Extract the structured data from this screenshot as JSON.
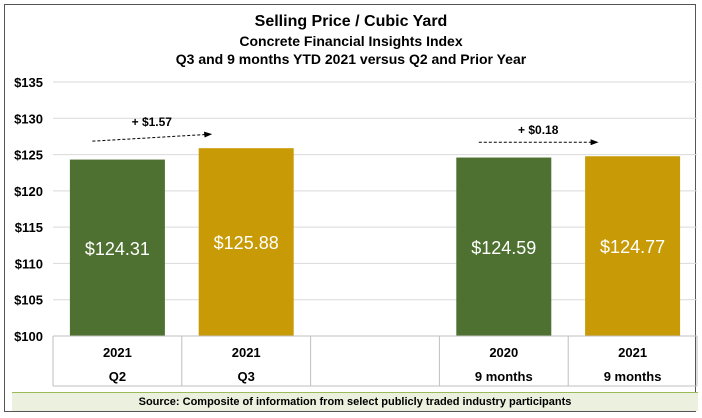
{
  "chart_data": {
    "type": "bar",
    "title": "Selling Price / Cubic Yard",
    "subtitle_1": "Concrete Financial Insights Index",
    "subtitle_2": "Q3 and 9 months YTD 2021 versus Q2 and Prior Year",
    "ylim": [
      100,
      135
    ],
    "yticks": [
      100,
      105,
      110,
      115,
      120,
      125,
      130,
      135
    ],
    "ytick_labels": [
      "$100",
      "$105",
      "$110",
      "$115",
      "$120",
      "$125",
      "$130",
      "$135"
    ],
    "grid": true,
    "bars": [
      {
        "year": "2021",
        "period": "Q2",
        "value": 124.31,
        "label": "$124.31",
        "color": "#4e7030"
      },
      {
        "year": "2021",
        "period": "Q3",
        "value": 125.88,
        "label": "$125.88",
        "color": "#c89a05"
      },
      {
        "year": "",
        "period": "",
        "value": null,
        "label": "",
        "color": ""
      },
      {
        "year": "2020",
        "period": "9 months",
        "value": 124.59,
        "label": "$124.59",
        "color": "#4e7030"
      },
      {
        "year": "2021",
        "period": "9 months",
        "value": 124.77,
        "label": "$124.77",
        "color": "#c89a05"
      }
    ],
    "annotations": [
      {
        "text": "+ $1.57",
        "from_bar": 0,
        "to_bar": 1
      },
      {
        "text": "+ $0.18",
        "from_bar": 3,
        "to_bar": 4
      }
    ],
    "source": "Source: Composite of information from select publicly traded industry participants"
  }
}
